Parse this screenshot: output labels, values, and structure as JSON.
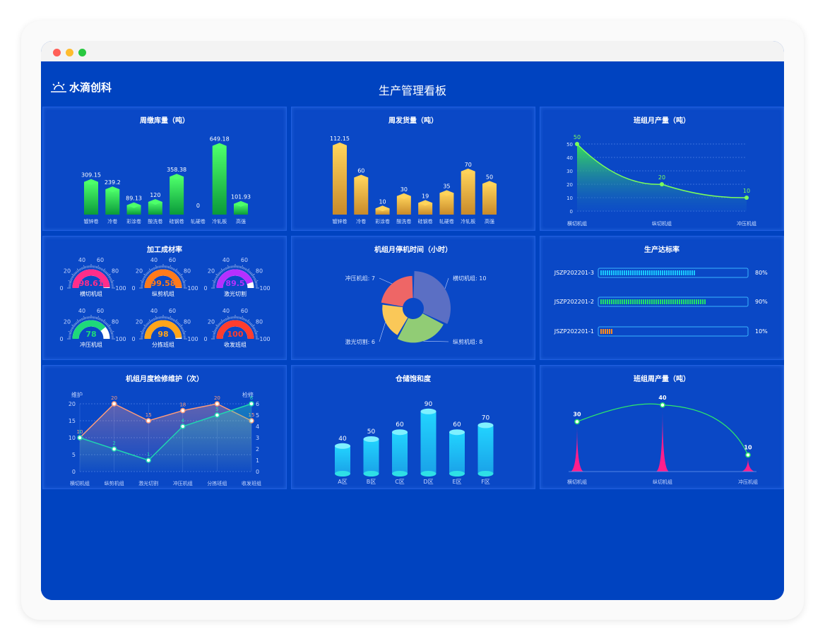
{
  "window": {
    "dots": [
      "#ff5f57",
      "#febc2e",
      "#28c840"
    ]
  },
  "brand": {
    "name": "水滴创科",
    "icon": "sunrise-icon"
  },
  "page_title": "生产管理看板",
  "panels": {
    "weekly_stock": {
      "title": "周缴库量（吨）"
    },
    "weekly_shipping": {
      "title": "周发货量（吨）"
    },
    "team_monthly": {
      "title": "班组月产量（吨）"
    },
    "yield_rate": {
      "title": "加工成材率"
    },
    "downtime": {
      "title": "机组月停机时间（小时）"
    },
    "target_rate": {
      "title": "生产达标率"
    },
    "maintenance": {
      "title": "机组月度检修维护（次）"
    },
    "storage": {
      "title": "仓储饱和度"
    },
    "team_weekly": {
      "title": "班组周产量（吨）"
    }
  },
  "chart_data": [
    {
      "id": "weekly_stock",
      "type": "bar",
      "title": "周缴库量（吨）",
      "categories": [
        "镀锌卷",
        "冷卷",
        "彩涂卷",
        "酸洗卷",
        "硅钢卷",
        "轧硬卷",
        "冷轧板",
        "高强"
      ],
      "values": [
        309.15,
        239.2,
        89.13,
        120,
        358.38,
        0,
        649.18,
        101.93
      ],
      "labels": [
        "309.15",
        "239.2",
        "89.13",
        "120",
        "358.38",
        "0",
        "649.18",
        "101.93"
      ],
      "ylim": [
        0,
        700
      ],
      "color": "#22d34a"
    },
    {
      "id": "weekly_shipping",
      "type": "bar",
      "title": "周发货量（吨）",
      "categories": [
        "镀锌卷",
        "冷卷",
        "彩涂卷",
        "酸洗卷",
        "硅钢卷",
        "轧硬卷",
        "冷轧板",
        "高强"
      ],
      "values": [
        112.15,
        60,
        10,
        30,
        19,
        35,
        70,
        50
      ],
      "labels": [
        "112.15",
        "60",
        "10",
        "30",
        "19",
        "35",
        "70",
        "50"
      ],
      "ylim": [
        0,
        120
      ],
      "color": "#f4b942"
    },
    {
      "id": "team_monthly",
      "type": "area",
      "title": "班组月产量（吨）",
      "categories": [
        "横切机组",
        "纵切机组",
        "冲压机组"
      ],
      "values": [
        50,
        20,
        10
      ],
      "yticks": [
        "0",
        "10",
        "20",
        "30",
        "40",
        "50"
      ],
      "ylim": [
        0,
        50
      ],
      "color": "#7cff5a"
    },
    {
      "id": "yield_rate",
      "type": "gauge",
      "title": "加工成材率",
      "gauges": [
        {
          "name": "横切机组",
          "value": "98.61",
          "color": "#ff2d8a",
          "fraction": 0.9861
        },
        {
          "name": "纵剪机组",
          "value": "99.58",
          "color": "#ff7a1a",
          "fraction": 0.9958
        },
        {
          "name": "激光切割",
          "value": "89.5",
          "color": "#b530ff",
          "fraction": 0.895
        },
        {
          "name": "冲压机组",
          "value": "78",
          "color": "#1ed97a",
          "fraction": 0.78
        },
        {
          "name": "分拣班组",
          "value": "98",
          "color": "#ffa51a",
          "fraction": 0.98
        },
        {
          "name": "收发班组",
          "value": "100",
          "color": "#ff3d2e",
          "fraction": 1.0
        }
      ],
      "scale": [
        "0",
        "20",
        "40",
        "60",
        "80",
        "100"
      ]
    },
    {
      "id": "downtime",
      "type": "pie",
      "title": "机组月停机时间（小时）",
      "slices": [
        {
          "name": "横切机组",
          "value": 10,
          "label": "横切机组: 10",
          "color": "#5b6fc4"
        },
        {
          "name": "纵剪机组",
          "value": 8,
          "label": "纵剪机组: 8",
          "color": "#91cc75"
        },
        {
          "name": "激光切割",
          "value": 6,
          "label": "激光切割: 6",
          "color": "#fac858"
        },
        {
          "name": "冲压机组",
          "value": 7,
          "label": "冲压机组: 7",
          "color": "#ee6666"
        }
      ]
    },
    {
      "id": "target_rate",
      "type": "bar",
      "title": "生产达标率",
      "rows": [
        {
          "name": "JSZP202201-3",
          "value": 80,
          "label": "80%",
          "color": "#19c8ff"
        },
        {
          "name": "JSZP202201-2",
          "value": 90,
          "label": "90%",
          "color": "#22e06a"
        },
        {
          "name": "JSZP202201-1",
          "value": 10,
          "label": "10%",
          "color": "#ff8a1c"
        }
      ]
    },
    {
      "id": "maintenance",
      "type": "line",
      "title": "机组月度检修维护（次）",
      "categories": [
        "横切机组",
        "纵剪机组",
        "激光切割",
        "冲压机组",
        "分拣班组",
        "收发班组"
      ],
      "ylabel_left": "维护",
      "ylabel_right": "检修",
      "ylim_left": [
        0,
        20
      ],
      "ylim_right": [
        0,
        6
      ],
      "yticks_left": [
        "0",
        "5",
        "10",
        "15",
        "20"
      ],
      "yticks_right": [
        "0",
        "1",
        "2",
        "3",
        "4",
        "5",
        "6"
      ],
      "series": [
        {
          "axis": "left",
          "values": [
            10,
            20,
            15,
            18,
            20,
            15
          ],
          "labels": [
            "10",
            "20",
            "15",
            "18",
            "20",
            "15"
          ],
          "color": "#ff9c7a"
        },
        {
          "axis": "right",
          "values": [
            3,
            2,
            1,
            4,
            5,
            6
          ],
          "labels": [
            "3",
            "2",
            "1",
            "4",
            "5",
            "6"
          ],
          "color": "#1fd6b0"
        }
      ]
    },
    {
      "id": "storage",
      "type": "bar",
      "title": "仓储饱和度",
      "categories": [
        "A区",
        "B区",
        "C区",
        "D区",
        "E区",
        "F区"
      ],
      "values": [
        40,
        50,
        60,
        90,
        60,
        70
      ],
      "labels": [
        "40",
        "50",
        "60",
        "90",
        "60",
        "70"
      ],
      "ylim": [
        0,
        100
      ],
      "color": "#1fc8ff"
    },
    {
      "id": "team_weekly",
      "type": "line",
      "title": "班组周产量（吨）",
      "categories": [
        "横切机组",
        "纵切机组",
        "冲压机组"
      ],
      "values": [
        30,
        40,
        10
      ],
      "labels": [
        "30",
        "40",
        "10"
      ],
      "ylim": [
        0,
        45
      ],
      "color": "#2ee86a",
      "spike_color": "#ff1e8c"
    }
  ]
}
